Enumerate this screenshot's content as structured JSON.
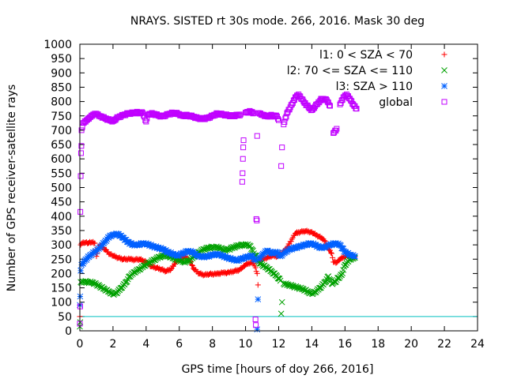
{
  "chart_data": {
    "type": "scatter",
    "title": "NRAYS. SISTED rt 30s mode. 266, 2016. Mask 30 deg",
    "xlabel": "GPS time [hours of doy 266, 2016]",
    "ylabel": "Number of GPS receiver-satellite rays",
    "xlim": [
      0,
      24
    ],
    "ylim": [
      0,
      1000
    ],
    "xticks": [
      0,
      2,
      4,
      6,
      8,
      10,
      12,
      14,
      16,
      18,
      20,
      22,
      24
    ],
    "yticks": [
      0,
      50,
      100,
      150,
      200,
      250,
      300,
      350,
      400,
      450,
      500,
      550,
      600,
      650,
      700,
      750,
      800,
      850,
      900,
      950,
      1000
    ],
    "legend_position": "top-right",
    "reference_line": {
      "y": 50,
      "color": "#00c0c0"
    },
    "series": [
      {
        "name": "l1: 0 < SZA < 70",
        "marker": "plus",
        "color": "#ff0000",
        "points": [
          [
            0,
            50
          ],
          [
            0.05,
            300
          ],
          [
            0.1,
            305
          ],
          [
            0.3,
            308
          ],
          [
            0.5,
            306
          ],
          [
            0.7,
            309
          ],
          [
            0.9,
            306
          ],
          [
            1.0,
            260
          ],
          [
            1.2,
            300
          ],
          [
            1.5,
            285
          ],
          [
            1.8,
            268
          ],
          [
            2.0,
            262
          ],
          [
            2.3,
            255
          ],
          [
            2.6,
            250
          ],
          [
            3.0,
            250
          ],
          [
            3.3,
            248
          ],
          [
            3.6,
            250
          ],
          [
            4.0,
            240
          ],
          [
            4.3,
            225
          ],
          [
            4.6,
            220
          ],
          [
            4.9,
            215
          ],
          [
            5.2,
            208
          ],
          [
            5.5,
            215
          ],
          [
            5.8,
            240
          ],
          [
            6.0,
            250
          ],
          [
            6.3,
            260
          ],
          [
            6.6,
            248
          ],
          [
            6.9,
            215
          ],
          [
            7.2,
            200
          ],
          [
            7.5,
            195
          ],
          [
            7.8,
            198
          ],
          [
            8.2,
            198
          ],
          [
            8.6,
            202
          ],
          [
            9.0,
            203
          ],
          [
            9.3,
            208
          ],
          [
            9.6,
            212
          ],
          [
            9.8,
            220
          ],
          [
            10.0,
            230
          ],
          [
            10.3,
            238
          ],
          [
            10.5,
            235
          ],
          [
            10.7,
            200
          ],
          [
            10.75,
            160
          ],
          [
            10.8,
            240
          ],
          [
            11.0,
            250
          ],
          [
            11.3,
            255
          ],
          [
            11.6,
            262
          ],
          [
            11.9,
            260
          ],
          [
            12.0,
            265
          ],
          [
            12.2,
            270
          ],
          [
            12.5,
            290
          ],
          [
            12.8,
            320
          ],
          [
            13.0,
            340
          ],
          [
            13.3,
            345
          ],
          [
            13.6,
            348
          ],
          [
            13.9,
            345
          ],
          [
            14.1,
            340
          ],
          [
            14.4,
            330
          ],
          [
            14.7,
            320
          ],
          [
            14.9,
            300
          ],
          [
            15.0,
            285
          ],
          [
            15.2,
            270
          ],
          [
            15.3,
            240
          ],
          [
            15.5,
            238
          ],
          [
            15.7,
            250
          ],
          [
            16.0,
            260
          ],
          [
            16.3,
            262
          ],
          [
            16.6,
            258
          ]
        ]
      },
      {
        "name": "l2: 70 <= SZA <= 110",
        "marker": "x",
        "color": "#00a000",
        "points": [
          [
            0,
            15
          ],
          [
            0.02,
            30
          ],
          [
            0.05,
            170
          ],
          [
            0.2,
            172
          ],
          [
            0.5,
            170
          ],
          [
            0.8,
            168
          ],
          [
            1.0,
            162
          ],
          [
            1.2,
            155
          ],
          [
            1.5,
            145
          ],
          [
            1.8,
            135
          ],
          [
            2.0,
            128
          ],
          [
            2.2,
            132
          ],
          [
            2.5,
            150
          ],
          [
            2.8,
            170
          ],
          [
            3.0,
            190
          ],
          [
            3.3,
            205
          ],
          [
            3.6,
            215
          ],
          [
            3.9,
            228
          ],
          [
            4.2,
            238
          ],
          [
            4.5,
            248
          ],
          [
            4.8,
            258
          ],
          [
            5.1,
            262
          ],
          [
            5.4,
            260
          ],
          [
            5.7,
            252
          ],
          [
            6.0,
            245
          ],
          [
            6.3,
            240
          ],
          [
            6.6,
            245
          ],
          [
            6.9,
            260
          ],
          [
            7.2,
            275
          ],
          [
            7.5,
            285
          ],
          [
            7.8,
            290
          ],
          [
            8.1,
            292
          ],
          [
            8.4,
            290
          ],
          [
            8.7,
            282
          ],
          [
            9.0,
            285
          ],
          [
            9.3,
            292
          ],
          [
            9.6,
            298
          ],
          [
            9.9,
            300
          ],
          [
            10.0,
            302
          ],
          [
            10.3,
            295
          ],
          [
            10.5,
            270
          ],
          [
            10.7,
            255
          ],
          [
            10.8,
            240
          ],
          [
            11.0,
            230
          ],
          [
            11.3,
            220
          ],
          [
            11.6,
            205
          ],
          [
            11.9,
            190
          ],
          [
            12.1,
            175
          ],
          [
            12.2,
            100
          ],
          [
            12.15,
            60
          ],
          [
            12.3,
            165
          ],
          [
            12.6,
            160
          ],
          [
            12.9,
            155
          ],
          [
            13.2,
            150
          ],
          [
            13.5,
            145
          ],
          [
            13.8,
            135
          ],
          [
            14.0,
            130
          ],
          [
            14.2,
            135
          ],
          [
            14.5,
            150
          ],
          [
            14.8,
            170
          ],
          [
            15.0,
            190
          ],
          [
            15.2,
            165
          ],
          [
            15.4,
            170
          ],
          [
            15.6,
            185
          ],
          [
            15.8,
            195
          ],
          [
            16.0,
            230
          ],
          [
            16.3,
            250
          ],
          [
            16.6,
            255
          ]
        ]
      },
      {
        "name": "l3: SZA > 110",
        "marker": "star",
        "color": "#0060ff",
        "points": [
          [
            0,
            90
          ],
          [
            0.02,
            120
          ],
          [
            0.05,
            210
          ],
          [
            0.1,
            230
          ],
          [
            0.3,
            245
          ],
          [
            0.6,
            262
          ],
          [
            0.9,
            275
          ],
          [
            1.2,
            290
          ],
          [
            1.5,
            310
          ],
          [
            1.8,
            330
          ],
          [
            2.0,
            335
          ],
          [
            2.3,
            338
          ],
          [
            2.6,
            325
          ],
          [
            2.9,
            310
          ],
          [
            3.2,
            300
          ],
          [
            3.5,
            300
          ],
          [
            3.8,
            305
          ],
          [
            4.1,
            302
          ],
          [
            4.4,
            295
          ],
          [
            4.7,
            290
          ],
          [
            5.0,
            285
          ],
          [
            5.3,
            275
          ],
          [
            5.6,
            268
          ],
          [
            5.9,
            262
          ],
          [
            6.2,
            270
          ],
          [
            6.5,
            278
          ],
          [
            6.8,
            275
          ],
          [
            7.1,
            262
          ],
          [
            7.4,
            258
          ],
          [
            7.7,
            260
          ],
          [
            8.0,
            265
          ],
          [
            8.3,
            268
          ],
          [
            8.6,
            262
          ],
          [
            8.9,
            255
          ],
          [
            9.2,
            250
          ],
          [
            9.5,
            245
          ],
          [
            9.8,
            252
          ],
          [
            10.1,
            258
          ],
          [
            10.4,
            262
          ],
          [
            10.6,
            245
          ],
          [
            10.7,
            5
          ],
          [
            10.75,
            110
          ],
          [
            10.8,
            250
          ],
          [
            11.0,
            265
          ],
          [
            11.3,
            280
          ],
          [
            11.6,
            270
          ],
          [
            11.9,
            275
          ],
          [
            12.1,
            260
          ],
          [
            12.4,
            275
          ],
          [
            12.7,
            285
          ],
          [
            13.0,
            290
          ],
          [
            13.3,
            295
          ],
          [
            13.6,
            300
          ],
          [
            13.9,
            305
          ],
          [
            14.2,
            300
          ],
          [
            14.5,
            290
          ],
          [
            14.8,
            292
          ],
          [
            15.1,
            300
          ],
          [
            15.4,
            305
          ],
          [
            15.7,
            300
          ],
          [
            16.0,
            275
          ],
          [
            16.3,
            265
          ],
          [
            16.6,
            260
          ]
        ]
      },
      {
        "name": "global",
        "marker": "square",
        "color": "#c000ff",
        "points": [
          [
            0,
            25
          ],
          [
            0.02,
            85
          ],
          [
            0.03,
            415
          ],
          [
            0.05,
            540
          ],
          [
            0.07,
            620
          ],
          [
            0.09,
            645
          ],
          [
            0.1,
            700
          ],
          [
            0.2,
            725
          ],
          [
            0.4,
            735
          ],
          [
            0.6,
            745
          ],
          [
            0.8,
            755
          ],
          [
            1.0,
            758
          ],
          [
            1.2,
            750
          ],
          [
            1.5,
            742
          ],
          [
            1.8,
            735
          ],
          [
            2.0,
            732
          ],
          [
            2.3,
            745
          ],
          [
            2.6,
            752
          ],
          [
            2.9,
            758
          ],
          [
            3.2,
            760
          ],
          [
            3.5,
            762
          ],
          [
            3.8,
            760
          ],
          [
            4.0,
            730
          ],
          [
            4.1,
            755
          ],
          [
            4.4,
            758
          ],
          [
            4.7,
            752
          ],
          [
            5.0,
            748
          ],
          [
            5.3,
            755
          ],
          [
            5.6,
            760
          ],
          [
            5.9,
            758
          ],
          [
            6.2,
            750
          ],
          [
            6.5,
            752
          ],
          [
            6.8,
            748
          ],
          [
            7.1,
            742
          ],
          [
            7.4,
            740
          ],
          [
            7.7,
            742
          ],
          [
            8.0,
            750
          ],
          [
            8.3,
            758
          ],
          [
            8.6,
            755
          ],
          [
            8.9,
            752
          ],
          [
            9.2,
            750
          ],
          [
            9.5,
            752
          ],
          [
            9.7,
            755
          ],
          [
            9.8,
            520
          ],
          [
            9.82,
            550
          ],
          [
            9.84,
            600
          ],
          [
            9.86,
            640
          ],
          [
            9.88,
            665
          ],
          [
            10.0,
            762
          ],
          [
            10.3,
            765
          ],
          [
            10.5,
            760
          ],
          [
            10.6,
            40
          ],
          [
            10.62,
            20
          ],
          [
            10.65,
            390
          ],
          [
            10.68,
            385
          ],
          [
            10.7,
            680
          ],
          [
            10.8,
            760
          ],
          [
            11.0,
            755
          ],
          [
            11.3,
            748
          ],
          [
            11.6,
            752
          ],
          [
            11.9,
            748
          ],
          [
            12.0,
            735
          ],
          [
            12.15,
            575
          ],
          [
            12.2,
            640
          ],
          [
            12.3,
            720
          ],
          [
            12.5,
            760
          ],
          [
            12.8,
            790
          ],
          [
            13.0,
            815
          ],
          [
            13.2,
            825
          ],
          [
            13.5,
            800
          ],
          [
            13.8,
            780
          ],
          [
            14.0,
            770
          ],
          [
            14.3,
            790
          ],
          [
            14.6,
            810
          ],
          [
            14.9,
            805
          ],
          [
            15.1,
            785
          ],
          [
            15.3,
            690
          ],
          [
            15.5,
            705
          ],
          [
            15.7,
            790
          ],
          [
            15.9,
            815
          ],
          [
            16.1,
            825
          ],
          [
            16.3,
            810
          ],
          [
            16.5,
            790
          ],
          [
            16.7,
            775
          ]
        ]
      }
    ]
  }
}
